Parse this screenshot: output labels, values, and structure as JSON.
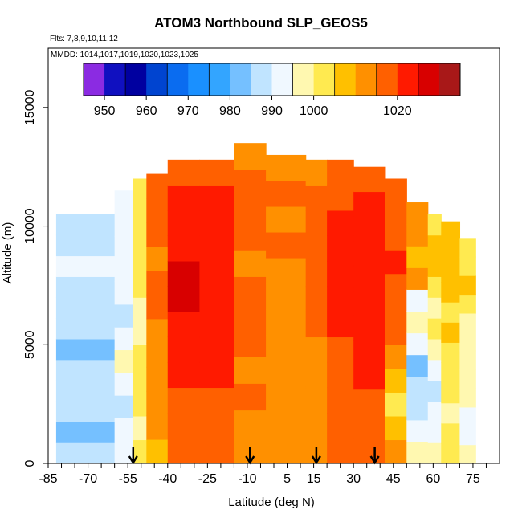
{
  "chart_data": {
    "type": "heatmap",
    "title": "ATOM3 Northbound SLP_GEOS5",
    "flights_note": "Flts: 7,8,9,10,11,12",
    "dates_note": "MMDD: 1014,1017,1019,1020,1023,1025",
    "xlabel": "Latitude (deg N)",
    "ylabel": "Altitude (m)",
    "xlim": [
      -85,
      85
    ],
    "ylim": [
      0,
      17500
    ],
    "x_tick_labels": [
      "-85",
      "-70",
      "-55",
      "-40",
      "-25",
      "-10",
      "5",
      "15",
      "30",
      "45",
      "60",
      "75"
    ],
    "x_tick_values": [
      -85,
      -70,
      -55,
      -40,
      -25,
      -10,
      5,
      15,
      30,
      45,
      60,
      75
    ],
    "y_tick_labels": [
      "0",
      "5000",
      "10000",
      "15000"
    ],
    "y_tick_values": [
      0,
      5000,
      10000,
      15000
    ],
    "colorbar": {
      "min": 945,
      "max": 1035,
      "bins": [
        945,
        950,
        955,
        960,
        965,
        970,
        975,
        980,
        985,
        990,
        995,
        1000,
        1005,
        1010,
        1015,
        1020,
        1025,
        1030,
        1035
      ],
      "colors": [
        "#8b2be2",
        "#1010c0",
        "#0000a0",
        "#0044d0",
        "#0a6cf0",
        "#1a90ff",
        "#33a5ff",
        "#75c0ff",
        "#c0e4ff",
        "#f0f8ff",
        "#fff8b0",
        "#ffea50",
        "#ffc000",
        "#ff9000",
        "#ff6000",
        "#ff1a00",
        "#d80000",
        "#a81818"
      ],
      "tick_values": [
        950,
        960,
        970,
        980,
        990,
        1000,
        1020
      ],
      "tick_labels": [
        "950",
        "960",
        "970",
        "980",
        "990",
        "1000",
        "1020"
      ]
    },
    "arrow_latitudes": [
      -53,
      -9,
      16,
      38
    ],
    "columns": [
      {
        "lat_start": -82,
        "lat_end": -60,
        "top": 10500,
        "values": [
          986,
          984,
          985,
          988,
          985,
          983,
          986,
          988,
          989,
          990,
          987,
          986
        ]
      },
      {
        "lat_start": -60,
        "lat_end": -53,
        "top": 11500,
        "values": [
          992,
          990,
          988,
          992,
          995,
          990,
          988,
          992,
          994,
          990,
          992,
          993
        ]
      },
      {
        "lat_start": -53,
        "lat_end": -48,
        "top": 12000,
        "values": [
          1000,
          998,
          1000,
          1003,
          1000,
          997,
          999,
          1003,
          1004,
          1000,
          1002,
          1004
        ]
      },
      {
        "lat_start": -48,
        "lat_end": -40,
        "top": 12200,
        "values": [
          1008,
          1010,
          1012,
          1010,
          1013,
          1011,
          1015,
          1018,
          1013,
          1016,
          1018,
          1015
        ]
      },
      {
        "lat_start": -40,
        "lat_end": -28,
        "top": 12800,
        "values": [
          1015,
          1017,
          1018,
          1020,
          1022,
          1022,
          1025,
          1025,
          1020,
          1022,
          1021,
          1018
        ]
      },
      {
        "lat_start": -28,
        "lat_end": -15,
        "top": 12800,
        "values": [
          1016,
          1018,
          1019,
          1021,
          1023,
          1022,
          1024,
          1022,
          1022,
          1023,
          1021,
          1018
        ]
      },
      {
        "lat_start": -15,
        "lat_end": -3,
        "top": 13500,
        "values": [
          1014,
          1014,
          1015,
          1014,
          1016,
          1015,
          1017,
          1014,
          1016,
          1015,
          1017,
          1013
        ]
      },
      {
        "lat_start": -3,
        "lat_end": 12,
        "top": 13000,
        "values": [
          1012,
          1013,
          1013,
          1014,
          1013,
          1014,
          1014,
          1014,
          1015,
          1014,
          1015,
          1013
        ]
      },
      {
        "lat_start": 12,
        "lat_end": 20,
        "top": 12800,
        "values": [
          1012,
          1013,
          1014,
          1013,
          1014,
          1015,
          1016,
          1015,
          1016,
          1015,
          1016,
          1014
        ]
      },
      {
        "lat_start": 20,
        "lat_end": 30,
        "top": 12800,
        "values": [
          1015,
          1016,
          1017,
          1018,
          1018,
          1020,
          1021,
          1021,
          1020,
          1021,
          1019,
          1017
        ]
      },
      {
        "lat_start": 30,
        "lat_end": 42,
        "top": 12500,
        "values": [
          1016,
          1017,
          1019,
          1020,
          1021,
          1022,
          1022,
          1023,
          1022,
          1022,
          1020,
          1018
        ]
      },
      {
        "lat_start": 42,
        "lat_end": 50,
        "top": 12000,
        "values": [
          1010,
          1007,
          1004,
          1006,
          1012,
          1015,
          1019,
          1018,
          1020,
          1019,
          1017,
          1015
        ]
      },
      {
        "lat_start": 50,
        "lat_end": 58,
        "top": 11000,
        "values": [
          996,
          992,
          988,
          985,
          984,
          990,
          995,
          992,
          1010,
          1008,
          1012,
          1010
        ]
      },
      {
        "lat_start": 58,
        "lat_end": 63,
        "top": 10500,
        "values": [
          999,
          994,
          990,
          988,
          992,
          996,
          1000,
          998,
          1004,
          1005,
          1006,
          1004
        ]
      },
      {
        "lat_start": 63,
        "lat_end": 70,
        "top": 10200,
        "values": [
          1002,
          1000,
          998,
          1001,
          1003,
          1002,
          1005,
          1004,
          1006,
          1007,
          1008,
          1005
        ]
      },
      {
        "lat_start": 70,
        "lat_end": 76,
        "top": 9500,
        "values": [
          996,
          994,
          993,
          995,
          997,
          996,
          999,
          998,
          1003,
          1005,
          1004,
          1002
        ]
      }
    ]
  }
}
